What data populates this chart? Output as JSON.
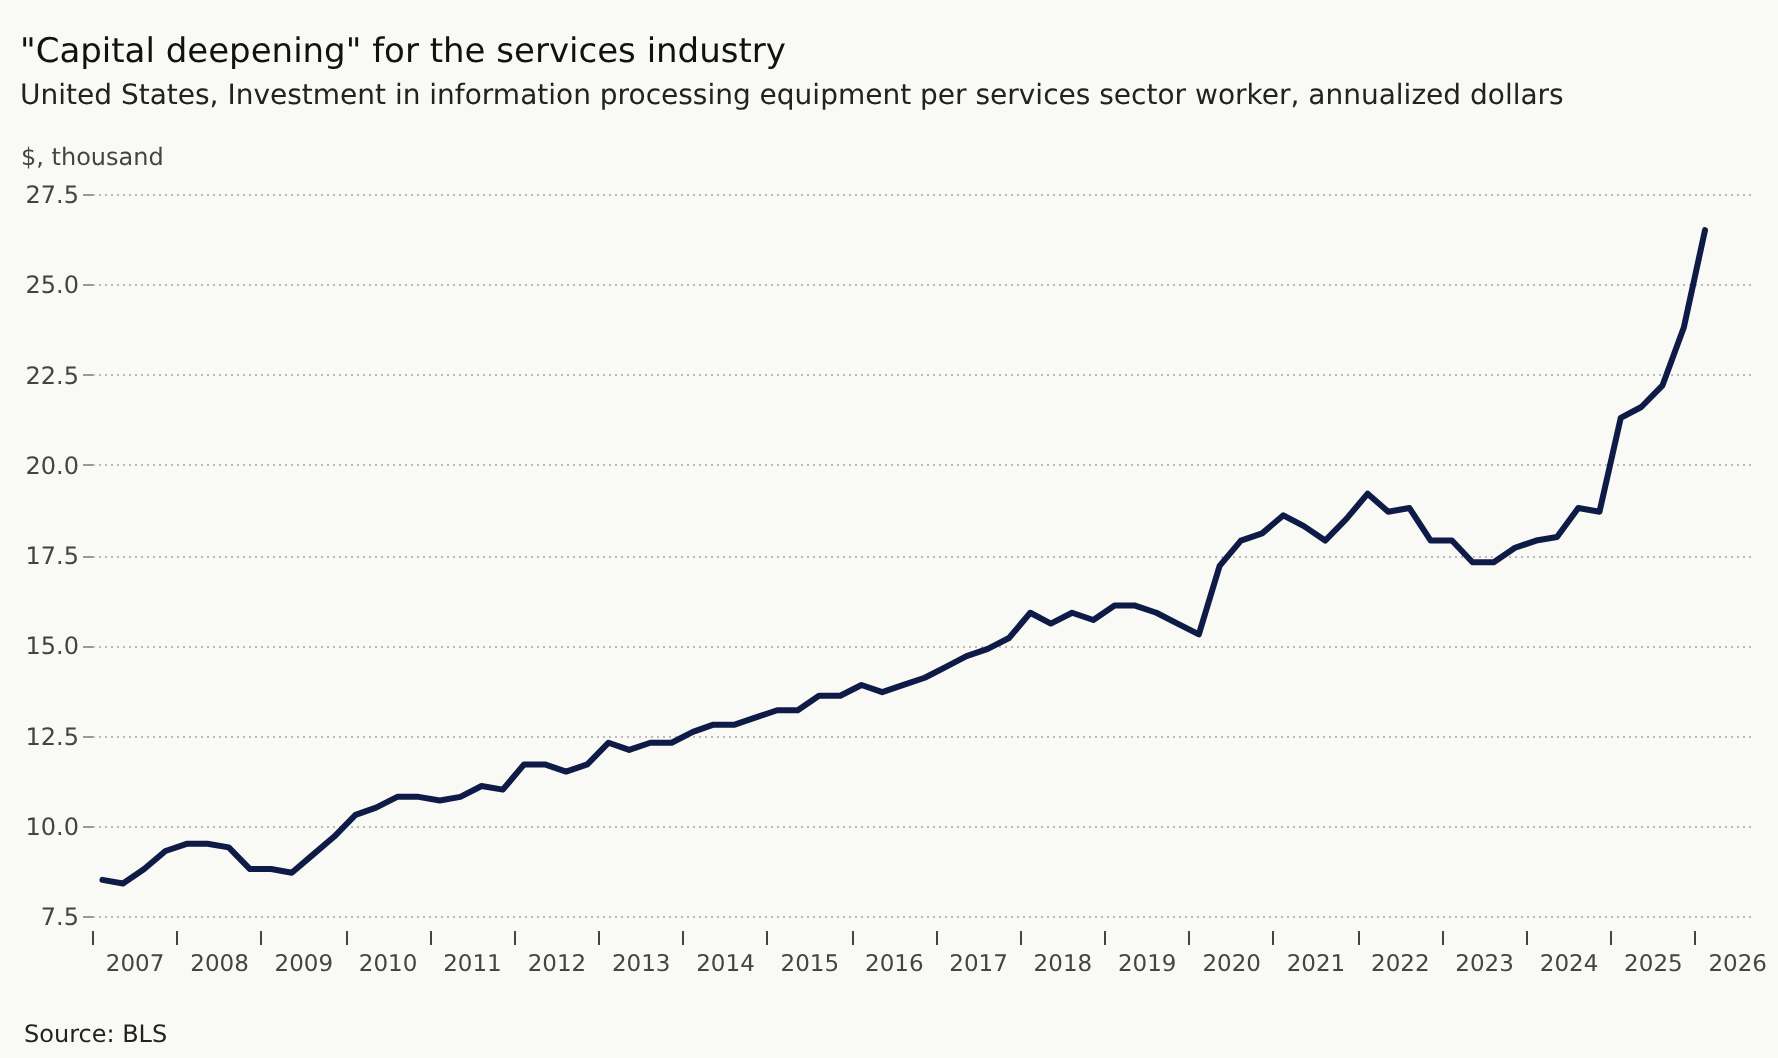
{
  "chart_data": {
    "type": "line",
    "title": "\"Capital deepening\" for the services industry",
    "subtitle": "United States, Investment in information processing equipment per services sector worker, annualized dollars",
    "ylabel": "$, thousand",
    "annotations": [
      "Source: BLS"
    ],
    "x": [
      "2007-02-15",
      "2007-05-15",
      "2007-08-15",
      "2007-11-15",
      "2008-02-15",
      "2008-05-15",
      "2008-08-15",
      "2008-11-15",
      "2009-02-15",
      "2009-05-15",
      "2009-08-15",
      "2009-11-15",
      "2010-02-15",
      "2010-05-15",
      "2010-08-15",
      "2010-11-15",
      "2011-02-15",
      "2011-05-15",
      "2011-08-15",
      "2011-11-15",
      "2012-02-15",
      "2012-05-15",
      "2012-08-15",
      "2012-11-15",
      "2013-02-15",
      "2013-05-15",
      "2013-08-15",
      "2013-11-15",
      "2014-02-15",
      "2014-05-15",
      "2014-08-15",
      "2014-11-15",
      "2015-02-15",
      "2015-05-15",
      "2015-08-15",
      "2015-11-15",
      "2016-02-15",
      "2016-05-15",
      "2016-08-15",
      "2016-11-15",
      "2017-02-15",
      "2017-05-15",
      "2017-08-15",
      "2017-11-15",
      "2018-02-15",
      "2018-05-15",
      "2018-08-15",
      "2018-11-15",
      "2019-02-15",
      "2019-05-15",
      "2019-08-15",
      "2019-11-15",
      "2020-02-15",
      "2020-05-15",
      "2020-08-15",
      "2020-11-15",
      "2021-02-15",
      "2021-05-15",
      "2021-08-15",
      "2021-11-15",
      "2022-02-15",
      "2022-05-15",
      "2022-08-15",
      "2022-11-15",
      "2023-02-15",
      "2023-05-15",
      "2023-08-15",
      "2023-11-15",
      "2024-02-15",
      "2024-05-15",
      "2024-08-15",
      "2024-11-15",
      "2025-02-15",
      "2025-05-15",
      "2025-08-15",
      "2025-11-15",
      "2026-02-15"
    ],
    "series": [
      {
        "color": "#0f1b47",
        "values": [
          8.5,
          8.4,
          8.8,
          9.3,
          9.5,
          9.5,
          9.4,
          8.8,
          8.8,
          8.7,
          9.2,
          9.7,
          10.3,
          10.5,
          10.8,
          10.8,
          10.7,
          10.8,
          11.1,
          11.0,
          11.7,
          11.7,
          11.5,
          11.7,
          12.3,
          12.1,
          12.3,
          12.3,
          12.6,
          12.8,
          12.8,
          13.0,
          13.2,
          13.2,
          13.6,
          13.6,
          13.9,
          13.7,
          13.9,
          14.1,
          14.4,
          14.7,
          14.9,
          15.2,
          15.9,
          15.6,
          15.9,
          15.7,
          16.1,
          16.1,
          15.9,
          15.6,
          15.3,
          17.2,
          17.9,
          18.1,
          18.6,
          18.3,
          17.9,
          18.5,
          19.2,
          18.7,
          18.8,
          17.9,
          17.9,
          17.3,
          17.3,
          17.7,
          17.9,
          18.0,
          18.8,
          18.7,
          21.3,
          21.6,
          22.2,
          23.8,
          26.5
        ]
      }
    ],
    "xlim": [
      "2007-01-01",
      "2026-09-15"
    ],
    "xticks": [
      {
        "value": "2007-01-01",
        "label": null
      },
      {
        "value": "2007-07-02",
        "label": "2007"
      },
      {
        "value": "2008-01-01",
        "label": null
      },
      {
        "value": "2008-07-02",
        "label": "2008"
      },
      {
        "value": "2009-01-01",
        "label": null
      },
      {
        "value": "2009-07-02",
        "label": "2009"
      },
      {
        "value": "2010-01-01",
        "label": null
      },
      {
        "value": "2010-07-02",
        "label": "2010"
      },
      {
        "value": "2011-01-01",
        "label": null
      },
      {
        "value": "2011-07-02",
        "label": "2011"
      },
      {
        "value": "2012-01-01",
        "label": null
      },
      {
        "value": "2012-07-02",
        "label": "2012"
      },
      {
        "value": "2013-01-01",
        "label": null
      },
      {
        "value": "2013-07-02",
        "label": "2013"
      },
      {
        "value": "2014-01-01",
        "label": null
      },
      {
        "value": "2014-07-02",
        "label": "2014"
      },
      {
        "value": "2015-01-01",
        "label": null
      },
      {
        "value": "2015-07-02",
        "label": "2015"
      },
      {
        "value": "2016-01-01",
        "label": null
      },
      {
        "value": "2016-07-02",
        "label": "2016"
      },
      {
        "value": "2017-01-01",
        "label": null
      },
      {
        "value": "2017-07-02",
        "label": "2017"
      },
      {
        "value": "2018-01-01",
        "label": null
      },
      {
        "value": "2018-07-02",
        "label": "2018"
      },
      {
        "value": "2019-01-01",
        "label": null
      },
      {
        "value": "2019-07-02",
        "label": "2019"
      },
      {
        "value": "2020-01-01",
        "label": null
      },
      {
        "value": "2020-07-02",
        "label": "2020"
      },
      {
        "value": "2021-01-01",
        "label": null
      },
      {
        "value": "2021-07-02",
        "label": "2021"
      },
      {
        "value": "2022-01-01",
        "label": null
      },
      {
        "value": "2022-07-02",
        "label": "2022"
      },
      {
        "value": "2023-01-01",
        "label": null
      },
      {
        "value": "2023-07-02",
        "label": "2023"
      },
      {
        "value": "2024-01-01",
        "label": null
      },
      {
        "value": "2024-07-02",
        "label": "2024"
      },
      {
        "value": "2025-01-01",
        "label": null
      },
      {
        "value": "2025-07-02",
        "label": "2025"
      },
      {
        "value": "2026-01-01",
        "label": null
      },
      {
        "value": "2026-07-02",
        "label": "2026"
      }
    ],
    "ylim": [
      7.5,
      27.5
    ],
    "yticks": [
      {
        "value": 7.5,
        "label": "7.5"
      },
      {
        "value": 10,
        "label": "10.0"
      },
      {
        "value": 12.5,
        "label": "12.5"
      },
      {
        "value": 15,
        "label": "15.0"
      },
      {
        "value": 17.5,
        "label": "17.5"
      },
      {
        "value": 20,
        "label": "20.0"
      },
      {
        "value": 22.5,
        "label": "22.5"
      },
      {
        "value": 25,
        "label": "25.0"
      },
      {
        "value": 27.5,
        "label": "27.5"
      }
    ],
    "grid": "y",
    "line_style": "solid"
  }
}
